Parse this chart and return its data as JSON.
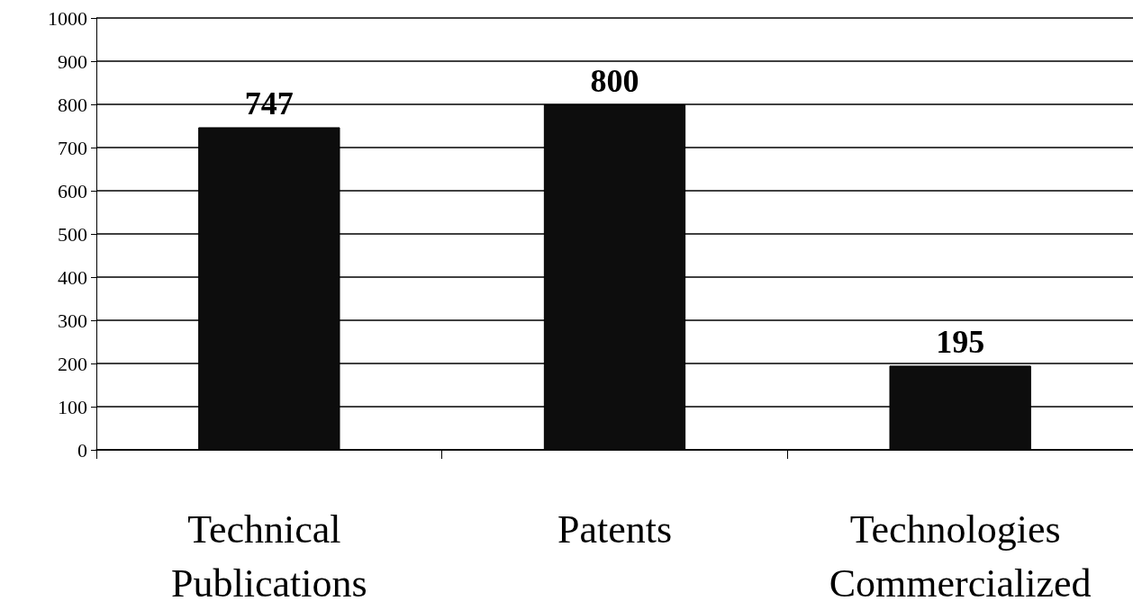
{
  "chart_data": {
    "type": "bar",
    "categories": [
      "Technical Publications",
      "Patents",
      "Technologies Commercialized"
    ],
    "values": [
      747,
      800,
      195
    ],
    "color": "#0d0d0d",
    "ylim": [
      0,
      1000
    ],
    "yticks": [
      0,
      100,
      200,
      300,
      400,
      500,
      600,
      700,
      800,
      900,
      1000
    ],
    "grid": "y",
    "data_labels": true
  }
}
